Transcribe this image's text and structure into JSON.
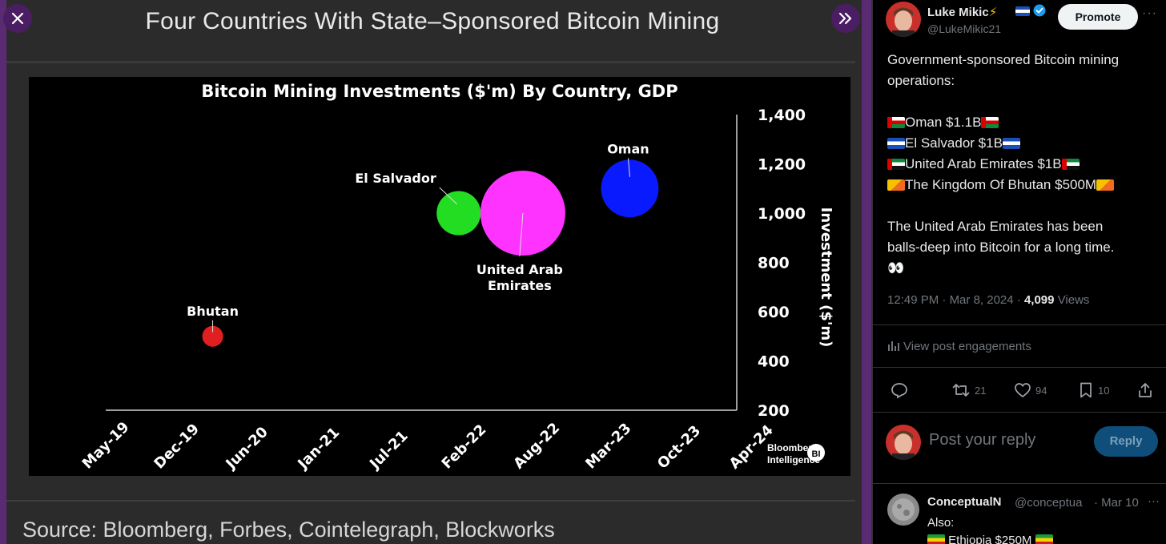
{
  "viewer": {
    "close_icon": "close-icon",
    "next_icon": "double-chevron-right-icon",
    "slide_title": "Four Countries With State–Sponsored Bitcoin Mining",
    "source": "Source: Bloomberg, Forbes, Cointelegraph, Blockworks",
    "watermark_line1": "Bloomberg",
    "watermark_line2": "Intelligence",
    "watermark_badge": "BI"
  },
  "chart_data": {
    "type": "scatter",
    "title": "Bitcoin Mining Investments ($'m) By Country, GDP",
    "ylabel": "Investment ($'m)",
    "xlabel": "",
    "x_tick_labels": [
      "May-19",
      "Dec-19",
      "Jun-20",
      "Jan-21",
      "Jul-21",
      "Feb-22",
      "Aug-22",
      "Mar-23",
      "Oct-23",
      "Apr-24"
    ],
    "y_ticks": [
      200,
      400,
      600,
      800,
      1000,
      1200,
      1400
    ],
    "ylim": [
      200,
      1400
    ],
    "y_axis_side": "right",
    "bubble_size": "GDP",
    "points": [
      {
        "label": "Bhutan",
        "x_month_index": 10,
        "y": 500,
        "color": "#e02020",
        "size_rel": 0.06
      },
      {
        "label": "El Salvador",
        "x_month_index": 33,
        "y": 1000,
        "color": "#22dd22",
        "size_rel": 0.27
      },
      {
        "label": "United Arab Emirates",
        "x_month_index": 39,
        "y": 1000,
        "color": "#ff33ff",
        "size_rel": 1.0
      },
      {
        "label": "Oman",
        "x_month_index": 49,
        "y": 1100,
        "color": "#0a1aff",
        "size_rel": 0.46
      }
    ]
  },
  "tweet": {
    "author_name": "Luke Mikic",
    "author_badges": "⚡",
    "author_handle": "@LukeMikic21",
    "promote_label": "Promote",
    "more_icon": "···",
    "intro_line1": "Government-sponsored Bitcoin mining",
    "intro_line2": "operations:",
    "items": [
      {
        "flag": "om",
        "text": "Oman $1.1B"
      },
      {
        "flag": "sv",
        "text": "El Salvador $1B"
      },
      {
        "flag": "ae",
        "text": "United Arab Emirates $1B"
      },
      {
        "flag": "bt",
        "text": "The Kingdom Of Bhutan $500M"
      }
    ],
    "closing_line1": "The United Arab Emirates has been",
    "closing_line2": "balls-deep into Bitcoin for a long time.",
    "closing_emoji": "👀",
    "time": "12:49 PM",
    "date": "Mar 8, 2024",
    "views_count": "4,099",
    "views_label": "Views",
    "engagements_label": "View post engagements",
    "actions": {
      "reply_count": "",
      "repost_count": "21",
      "like_count": "94",
      "bookmark_count": "10"
    },
    "reply_placeholder": "Post your reply",
    "reply_button": "Reply"
  },
  "reply": {
    "name": "ConceptualN",
    "handle": "@conceptua",
    "date": "Mar 10",
    "more": "···",
    "line1": "Also:",
    "line2": "Ethiopia $250M"
  }
}
